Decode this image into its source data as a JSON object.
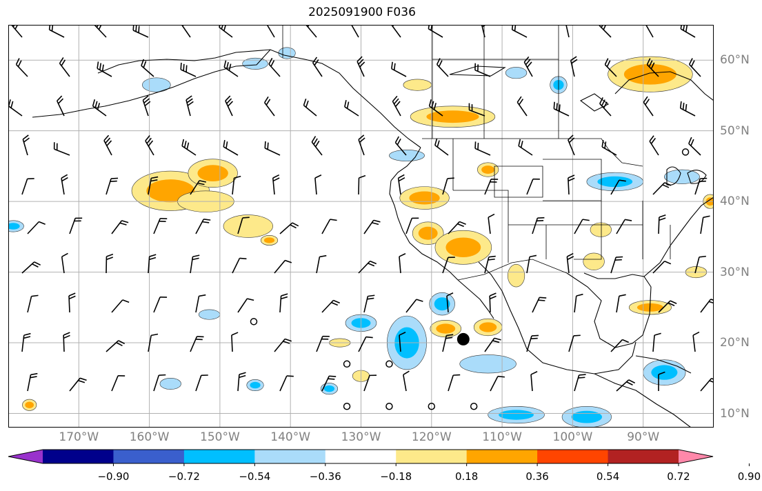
{
  "title": "2025091900 F036",
  "map": {
    "lon_range": [
      -180,
      -80
    ],
    "lat_range": [
      8,
      65
    ],
    "lon_labels": [
      {
        "lon": -170,
        "text": "170°W"
      },
      {
        "lon": -160,
        "text": "160°W"
      },
      {
        "lon": -150,
        "text": "150°W"
      },
      {
        "lon": -140,
        "text": "140°W"
      },
      {
        "lon": -130,
        "text": "130°W"
      },
      {
        "lon": -120,
        "text": "120°W"
      },
      {
        "lon": -110,
        "text": "110°W"
      },
      {
        "lon": -100,
        "text": "100°W"
      },
      {
        "lon": -90,
        "text": "90°W"
      }
    ],
    "lat_labels": [
      {
        "lat": 60,
        "text": "60°N"
      },
      {
        "lat": 50,
        "text": "50°N"
      },
      {
        "lat": 40,
        "text": "40°N"
      },
      {
        "lat": 30,
        "text": "30°N"
      },
      {
        "lat": 20,
        "text": "20°N"
      },
      {
        "lat": 10,
        "text": "10°N"
      }
    ],
    "grid": true,
    "colors": {
      "land_lines": "#000000",
      "grid": "#b0b0b0",
      "pos1": "#fde98a",
      "pos2": "#ffa500",
      "neg1": "#aadcfa",
      "neg2": "#00bfff"
    },
    "positive_regions": [
      {
        "lon": -157,
        "lat": 41.5,
        "rlon": 5.5,
        "rlat": 2.8,
        "level": 2
      },
      {
        "lon": -151,
        "lat": 44,
        "rlon": 3.5,
        "rlat": 2,
        "level": 2
      },
      {
        "lon": -152,
        "lat": 40,
        "rlon": 4,
        "rlat": 1.5,
        "level": 1
      },
      {
        "lon": -146,
        "lat": 36.5,
        "rlon": 3.5,
        "rlat": 1.6,
        "level": 1
      },
      {
        "lon": -143,
        "lat": 34.5,
        "rlon": 1.2,
        "rlat": 0.7,
        "level": 2
      },
      {
        "lon": -121,
        "lat": 40.5,
        "rlon": 3.5,
        "rlat": 1.6,
        "level": 2
      },
      {
        "lon": -120.5,
        "lat": 35.5,
        "rlon": 2.2,
        "rlat": 1.6,
        "level": 2
      },
      {
        "lon": -115.5,
        "lat": 33.5,
        "rlon": 4,
        "rlat": 2.4,
        "level": 2
      },
      {
        "lon": -117,
        "lat": 52,
        "rlon": 6,
        "rlat": 1.5,
        "level": 2
      },
      {
        "lon": -89,
        "lat": 58,
        "rlon": 6,
        "rlat": 2.5,
        "level": 2
      },
      {
        "lon": -112,
        "lat": 44.5,
        "rlon": 1.5,
        "rlat": 1,
        "level": 2
      },
      {
        "lon": -118,
        "lat": 22,
        "rlon": 2.2,
        "rlat": 1.2,
        "level": 2
      },
      {
        "lon": -112,
        "lat": 22.2,
        "rlon": 2,
        "rlat": 1.2,
        "level": 2
      },
      {
        "lon": -97,
        "lat": 31.5,
        "rlon": 1.5,
        "rlat": 1.2,
        "level": 1
      },
      {
        "lon": -108,
        "lat": 29.5,
        "rlon": 1.2,
        "rlat": 1.6,
        "level": 1
      },
      {
        "lon": -82.5,
        "lat": 30,
        "rlon": 1.5,
        "rlat": 0.8,
        "level": 1
      },
      {
        "lon": -122,
        "lat": 56.5,
        "rlon": 2,
        "rlat": 0.8,
        "level": 1
      },
      {
        "lon": -89,
        "lat": 25,
        "rlon": 3,
        "rlat": 1,
        "level": 2
      },
      {
        "lon": -133,
        "lat": 20,
        "rlon": 1.5,
        "rlat": 0.6,
        "level": 1
      },
      {
        "lon": -130,
        "lat": 15.3,
        "rlon": 1.2,
        "rlat": 0.8,
        "level": 1
      },
      {
        "lon": -177,
        "lat": 11.2,
        "rlon": 1,
        "rlat": 0.8,
        "level": 2
      },
      {
        "lon": -96,
        "lat": 36,
        "rlon": 1.5,
        "rlat": 1,
        "level": 1
      },
      {
        "lon": -80.5,
        "lat": 40,
        "rlon": 1,
        "rlat": 1,
        "level": 2
      }
    ],
    "negative_regions": [
      {
        "lon": -123.5,
        "lat": 20,
        "rlon": 2.8,
        "rlat": 3.8,
        "level": 2
      },
      {
        "lon": -118.5,
        "lat": 25.5,
        "rlon": 1.8,
        "rlat": 1.6,
        "level": 2
      },
      {
        "lon": -112,
        "lat": 17,
        "rlon": 4,
        "rlat": 1.3,
        "level": 1
      },
      {
        "lon": -108,
        "lat": 9.8,
        "rlon": 4,
        "rlat": 1.2,
        "level": 2
      },
      {
        "lon": -98,
        "lat": 9.5,
        "rlon": 3.5,
        "rlat": 1.5,
        "level": 2
      },
      {
        "lon": -87,
        "lat": 15.8,
        "rlon": 3,
        "rlat": 1.8,
        "level": 2
      },
      {
        "lon": -94,
        "lat": 42.8,
        "rlon": 4,
        "rlat": 1.3,
        "level": 2
      },
      {
        "lon": -84.5,
        "lat": 43.5,
        "rlon": 2.5,
        "rlat": 1,
        "level": 1
      },
      {
        "lon": -145,
        "lat": 59.5,
        "rlon": 1.8,
        "rlat": 0.8,
        "level": 1
      },
      {
        "lon": -159,
        "lat": 56.5,
        "rlon": 2,
        "rlat": 1,
        "level": 1
      },
      {
        "lon": -102,
        "lat": 56.5,
        "rlon": 1.2,
        "rlat": 1.2,
        "level": 2
      },
      {
        "lon": -108,
        "lat": 58.2,
        "rlon": 1.5,
        "rlat": 0.8,
        "level": 1
      },
      {
        "lon": -140.5,
        "lat": 61,
        "rlon": 1.2,
        "rlat": 0.8,
        "level": 1
      },
      {
        "lon": -123.5,
        "lat": 46.5,
        "rlon": 2.5,
        "rlat": 0.8,
        "level": 1
      },
      {
        "lon": -134.5,
        "lat": 13.5,
        "rlon": 1.2,
        "rlat": 0.8,
        "level": 2
      },
      {
        "lon": -145,
        "lat": 14,
        "rlon": 1.2,
        "rlat": 0.8,
        "level": 2
      },
      {
        "lon": -157,
        "lat": 14.2,
        "rlon": 1.5,
        "rlat": 0.8,
        "level": 1
      },
      {
        "lon": -151.5,
        "lat": 24,
        "rlon": 1.5,
        "rlat": 0.7,
        "level": 1
      },
      {
        "lon": -179.3,
        "lat": 36.5,
        "rlon": 1.5,
        "rlat": 0.8,
        "level": 2
      },
      {
        "lon": -130,
        "lat": 22.8,
        "rlon": 2.2,
        "rlat": 1.2,
        "level": 2
      }
    ],
    "station_markers": [
      {
        "lon": -145.2,
        "lat": 23
      },
      {
        "lon": -132,
        "lat": 17
      },
      {
        "lon": -126,
        "lat": 17
      },
      {
        "lon": -132,
        "lat": 11
      },
      {
        "lon": -126,
        "lat": 11
      },
      {
        "lon": -120,
        "lat": 11
      },
      {
        "lon": -114,
        "lat": 11
      },
      {
        "lon": -84,
        "lat": 47
      }
    ],
    "large_marker": {
      "lon": -115.5,
      "lat": 20.5
    }
  },
  "colorbar": {
    "colors": [
      "#9932cc",
      "#00008b",
      "#3a5fcd",
      "#00bfff",
      "#aadcfa",
      "#ffffff",
      "#fde98a",
      "#ffa500",
      "#ff4500",
      "#b22222",
      "#ff88aa"
    ],
    "tick_labels": [
      "−0.90",
      "−0.72",
      "−0.54",
      "−0.36",
      "−0.18",
      "0.18",
      "0.36",
      "0.54",
      "0.72",
      "0.90"
    ]
  }
}
